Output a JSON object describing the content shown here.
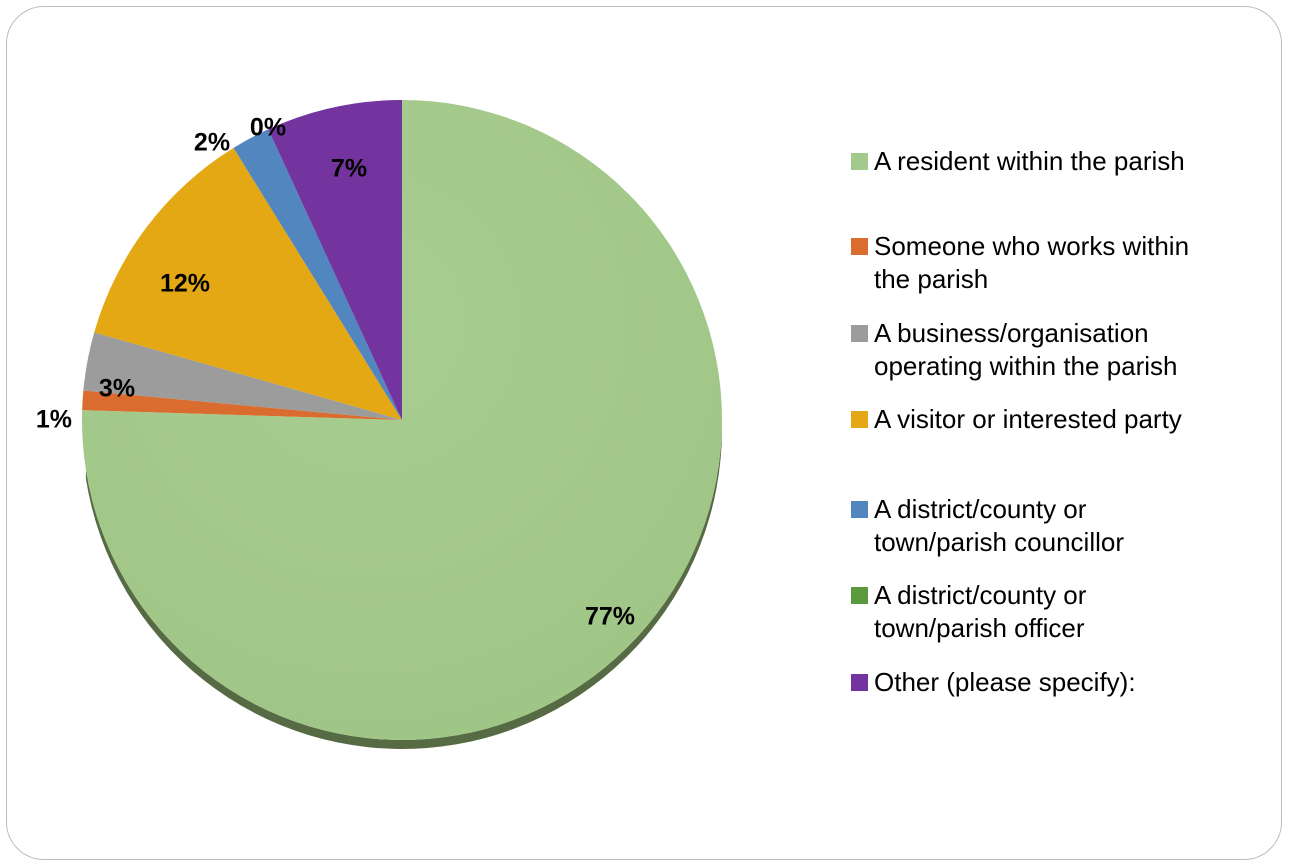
{
  "chart_data": {
    "type": "pie",
    "categories": [
      "A resident within the parish",
      "Someone who works within the parish",
      "A business/organisation operating within the parish",
      "A visitor or interested party",
      "A district/county or town/parish councillor",
      "A district/county or town/parish officer",
      "Other (please specify):"
    ],
    "values": [
      77,
      1,
      3,
      12,
      2,
      0,
      7
    ],
    "labels": [
      "77%",
      "1%",
      "3%",
      "12%",
      "2%",
      "0%",
      "7%"
    ],
    "colors": [
      "#a3c98c",
      "#d96c2e",
      "#9c9c9c",
      "#e3a814",
      "#5286be",
      "#5a9a3c",
      "#7334a0"
    ],
    "legend_position": "right"
  },
  "legend": [
    {
      "label_lines": [
        "A resident within the parish"
      ],
      "color": "#a3c98c"
    },
    {
      "label_lines": [
        "Someone who works within",
        "the parish"
      ],
      "color": "#d96c2e"
    },
    {
      "label_lines": [
        "A business/organisation",
        "operating within the parish"
      ],
      "color": "#9c9c9c"
    },
    {
      "label_lines": [
        "A visitor or interested party"
      ],
      "color": "#e3a814"
    },
    {
      "label_lines": [
        "A district/county or",
        "town/parish councillor"
      ],
      "color": "#5286be"
    },
    {
      "label_lines": [
        "A district/county or",
        "town/parish officer"
      ],
      "color": "#5a9a3c"
    },
    {
      "label_lines": [
        "Other (please specify):"
      ],
      "color": "#7334a0"
    }
  ]
}
